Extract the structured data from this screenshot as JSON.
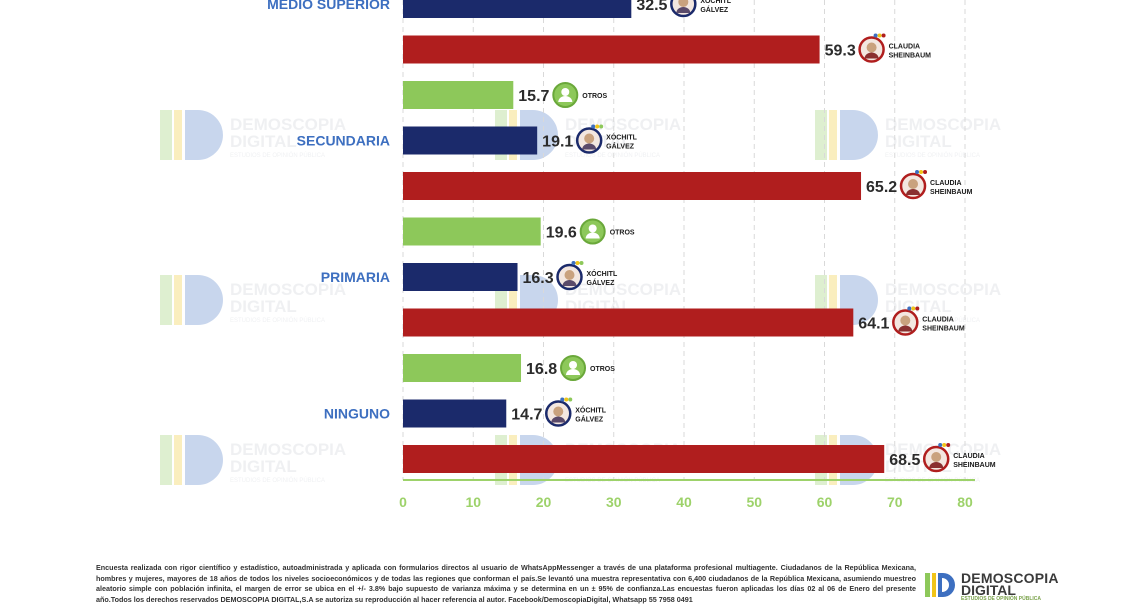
{
  "chart_data": {
    "type": "bar",
    "orientation": "horizontal",
    "xlim": [
      0,
      80
    ],
    "x_ticks": [
      "0",
      "10",
      "20",
      "30",
      "40",
      "50",
      "60",
      "70",
      "80"
    ],
    "grid": "vertical dashed",
    "groups": [
      {
        "label": "MEDIO SUPERIOR",
        "bars": [
          {
            "candidate": [
              "XÓCHITL",
              "GÁLVEZ"
            ],
            "party": "xg",
            "value": 32.5
          },
          {
            "candidate": [
              "CLAUDIA",
              "SHEINBAUM"
            ],
            "party": "cs",
            "value": 59.3
          },
          {
            "candidate": [
              "OTROS"
            ],
            "party": "ot",
            "value": 15.7
          }
        ]
      },
      {
        "label": "SECUNDARIA",
        "bars": [
          {
            "candidate": [
              "XÓCHITL",
              "GÁLVEZ"
            ],
            "party": "xg",
            "value": 19.1
          },
          {
            "candidate": [
              "CLAUDIA",
              "SHEINBAUM"
            ],
            "party": "cs",
            "value": 65.2
          },
          {
            "candidate": [
              "OTROS"
            ],
            "party": "ot",
            "value": 19.6
          }
        ]
      },
      {
        "label": "PRIMARIA",
        "bars": [
          {
            "candidate": [
              "XÓCHITL",
              "GÁLVEZ"
            ],
            "party": "xg",
            "value": 16.3
          },
          {
            "candidate": [
              "CLAUDIA",
              "SHEINBAUM"
            ],
            "party": "cs",
            "value": 64.1
          },
          {
            "candidate": [
              "OTROS"
            ],
            "party": "ot",
            "value": 16.8
          }
        ]
      },
      {
        "label": "NINGUNO",
        "bars": [
          {
            "candidate": [
              "XÓCHITL",
              "GÁLVEZ"
            ],
            "party": "xg",
            "value": 14.7
          },
          {
            "candidate": [
              "CLAUDIA",
              "SHEINBAUM"
            ],
            "party": "cs",
            "value": 68.5
          }
        ]
      }
    ]
  },
  "colors": {
    "xg": "#1b2a6b",
    "cs": "#b01e1e",
    "ot": "#8dc85a",
    "axis": "#9dd26a",
    "label": "#3d6fc0",
    "grid": "#d9d9d9"
  },
  "icons": {
    "xg": "person-photo-icon",
    "cs": "person-photo-icon",
    "ot": "user-silhouette-icon"
  },
  "watermark": {
    "line1": "DEMOSCOPIA",
    "line2": "DIGITAL",
    "line3": "ESTUDIOS DE OPINIÓN PÚBLICA"
  },
  "footnote": "Encuesta realizada con rigor científico y estadístico, autoadministrada y aplicada con formularios directos al usuario de WhatsAppMessenger a través de una plataforma profesional multiagente. Ciudadanos de la República Mexicana, hombres y mujeres, mayores de 18 años de todos los niveles socioeconómicos y de todas las regiones que conforman el país.Se levantó una muestra representativa con 6,400 ciudadanos de la República Mexicana, asumiendo muestreo aleatorio simple con población infinita, el margen de error se ubica en el +/- 3.8% bajo supuesto de varianza máxima y se determina en un ± 95% de confianza.Las encuestas fueron aplicadas los días 02 al 06 de Enero del presente año.Todos los derechos reservados DEMOSCOPIA DIGITAL,S.A se autoriza su reproducción al hacer referencia al autor. Facebook/DemoscopiaDigital, Whatsapp 55 7958 0491",
  "logo": {
    "line1": "DEMOSCOPIA",
    "line2": "DIGITAL",
    "line3": "ESTUDIOS DE OPINIÓN PÚBLICA"
  }
}
